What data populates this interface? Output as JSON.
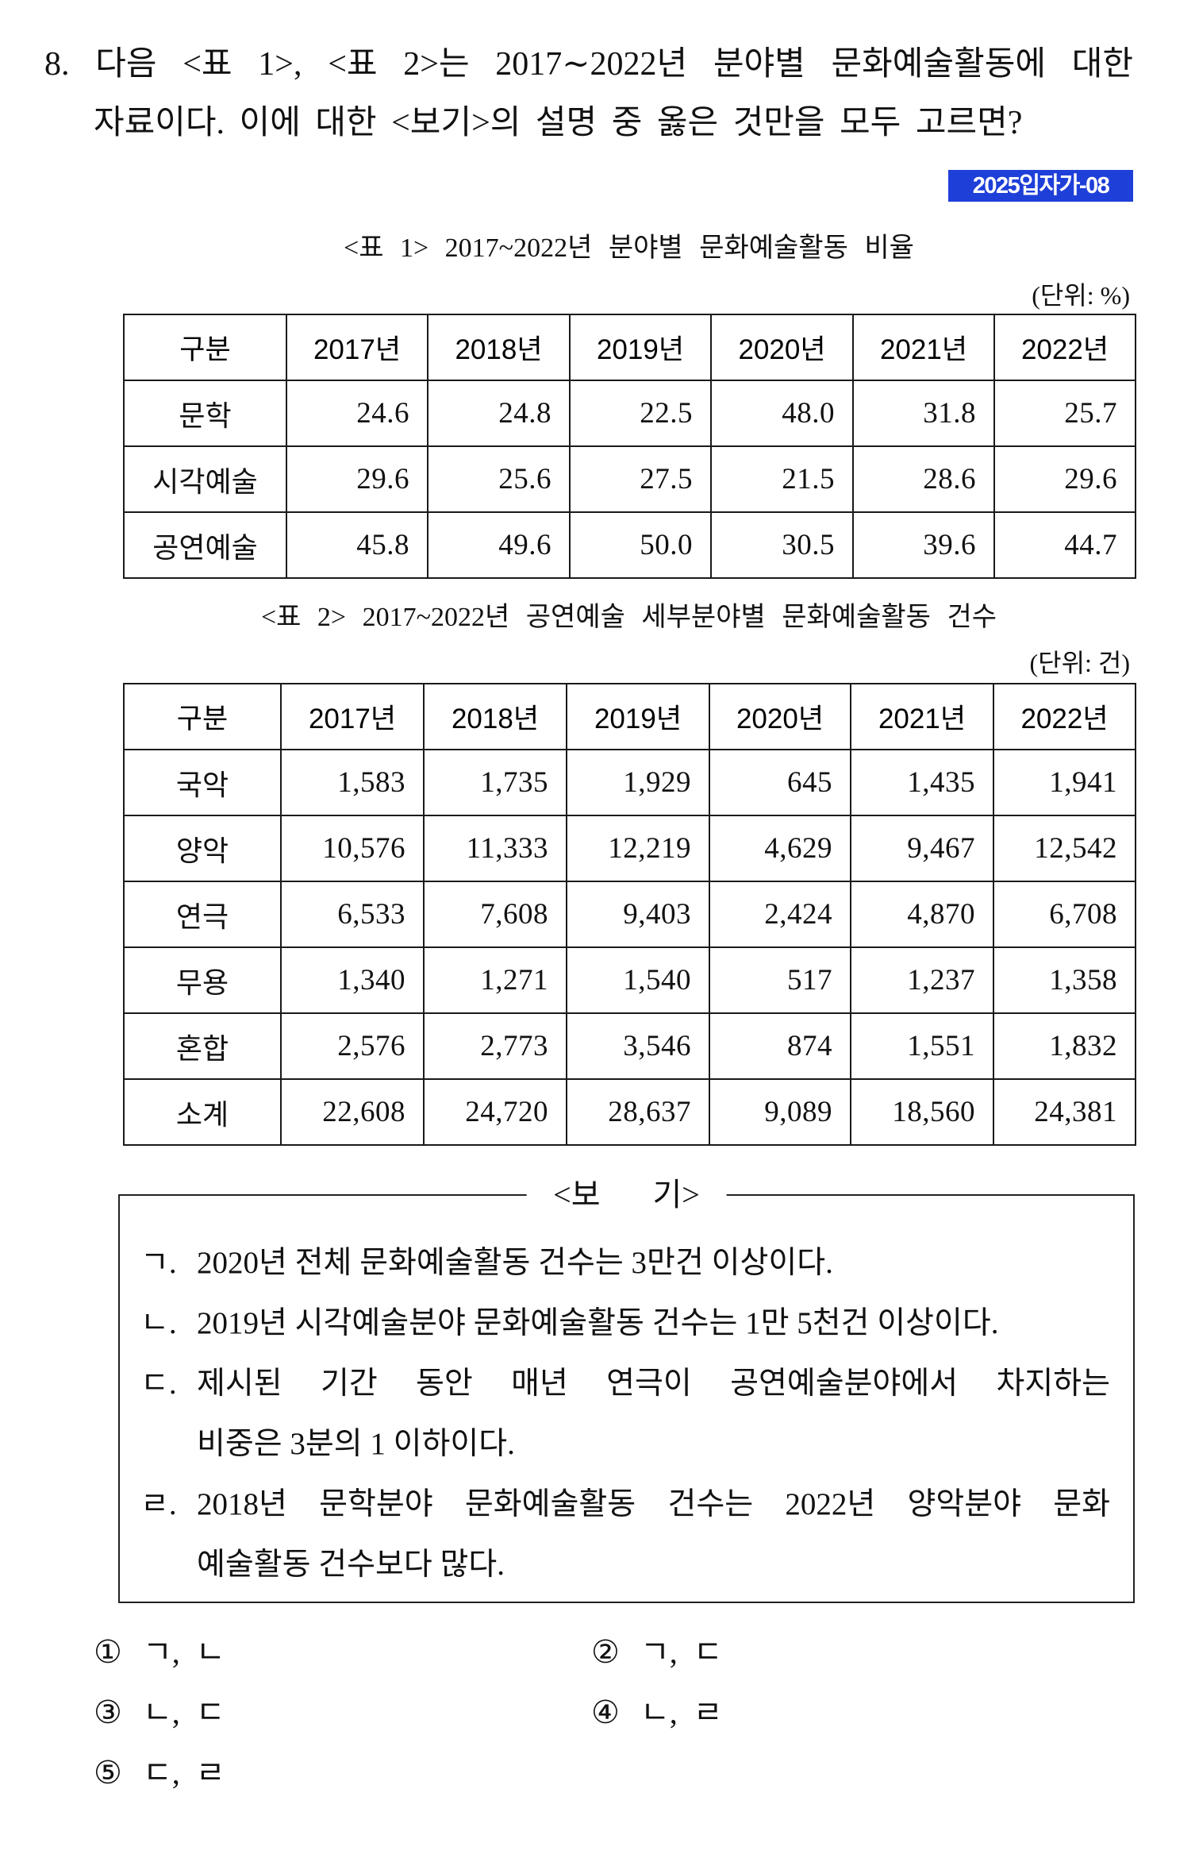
{
  "question": {
    "number": "8.",
    "line1": "다음 <표 1>, <표 2>는 2017∼2022년 분야별 문화예술활동에 대한",
    "line2": "자료이다. 이에 대한 <보기>의 설명 중 옳은 것만을 모두 고르면?",
    "source_tag": "2025입자가-08"
  },
  "colors": {
    "badge_background": "#1f3fd9",
    "badge_text": "#ffffff"
  },
  "table1": {
    "caption": "<표 1> 2017~2022년 분야별 문화예술활동 비율",
    "unit": "(단위: %)",
    "headers": [
      "구분",
      "2017년",
      "2018년",
      "2019년",
      "2020년",
      "2021년",
      "2022년"
    ],
    "rows": [
      {
        "label": "문학",
        "values": [
          "24.6",
          "24.8",
          "22.5",
          "48.0",
          "31.8",
          "25.7"
        ]
      },
      {
        "label": "시각예술",
        "values": [
          "29.6",
          "25.6",
          "27.5",
          "21.5",
          "28.6",
          "29.6"
        ]
      },
      {
        "label": "공연예술",
        "values": [
          "45.8",
          "49.6",
          "50.0",
          "30.5",
          "39.6",
          "44.7"
        ]
      }
    ]
  },
  "table2": {
    "caption": "<표 2> 2017~2022년 공연예술 세부분야별 문화예술활동 건수",
    "unit": "(단위: 건)",
    "headers": [
      "구분",
      "2017년",
      "2018년",
      "2019년",
      "2020년",
      "2021년",
      "2022년"
    ],
    "rows": [
      {
        "label": "국악",
        "values": [
          "1,583",
          "1,735",
          "1,929",
          "645",
          "1,435",
          "1,941"
        ]
      },
      {
        "label": "양악",
        "values": [
          "10,576",
          "11,333",
          "12,219",
          "4,629",
          "9,467",
          "12,542"
        ]
      },
      {
        "label": "연극",
        "values": [
          "6,533",
          "7,608",
          "9,403",
          "2,424",
          "4,870",
          "6,708"
        ]
      },
      {
        "label": "무용",
        "values": [
          "1,340",
          "1,271",
          "1,540",
          "517",
          "1,237",
          "1,358"
        ]
      },
      {
        "label": "혼합",
        "values": [
          "2,576",
          "2,773",
          "3,546",
          "874",
          "1,551",
          "1,832"
        ]
      },
      {
        "label": "소계",
        "values": [
          "22,608",
          "24,720",
          "28,637",
          "9,089",
          "18,560",
          "24,381"
        ]
      }
    ]
  },
  "bogi": {
    "title": "<보 기>",
    "items": [
      {
        "marker": "ㄱ.",
        "lines": [
          "2020년 전체 문화예술활동 건수는 3만건 이상이다."
        ]
      },
      {
        "marker": "ㄴ.",
        "lines": [
          "2019년 시각예술분야 문화예술활동 건수는 1만 5천건 이상이다."
        ]
      },
      {
        "marker": "ㄷ.",
        "lines": [
          "제시된 기간 동안 매년 연극이 공연예술분야에서 차지하는",
          "비중은 3분의 1 이하이다."
        ]
      },
      {
        "marker": "ㄹ.",
        "lines": [
          "2018년 문학분야 문화예술활동 건수는 2022년 양악분야 문화",
          "예술활동 건수보다 많다."
        ]
      }
    ]
  },
  "choices": [
    {
      "number": "①",
      "text": "ㄱ, ㄴ"
    },
    {
      "number": "②",
      "text": "ㄱ, ㄷ"
    },
    {
      "number": "③",
      "text": "ㄴ, ㄷ"
    },
    {
      "number": "④",
      "text": "ㄴ, ㄹ"
    },
    {
      "number": "⑤",
      "text": "ㄷ, ㄹ"
    }
  ]
}
